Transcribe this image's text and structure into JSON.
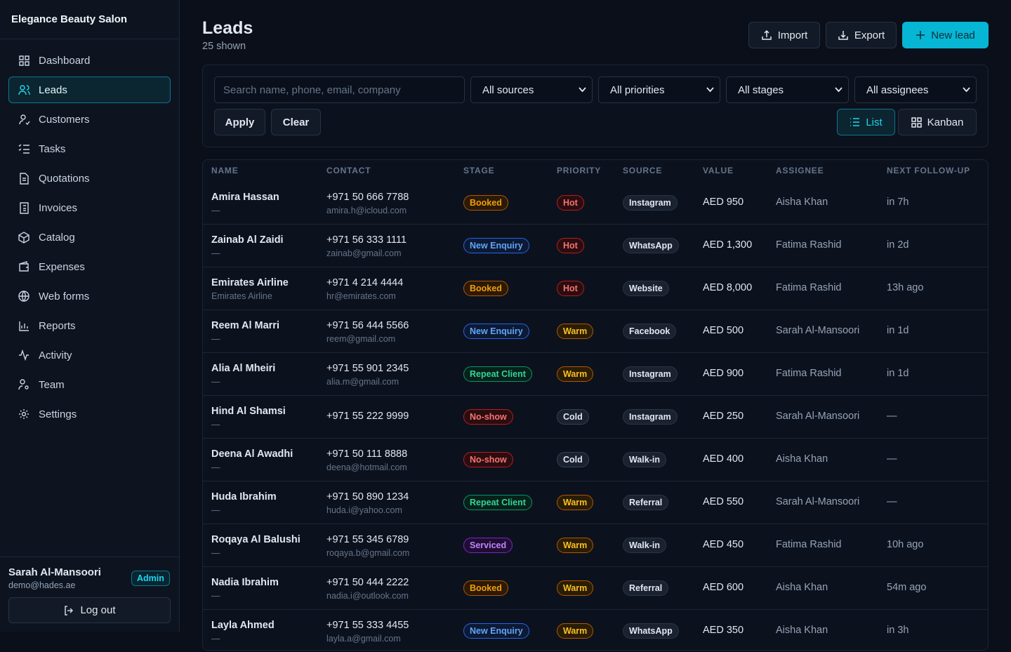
{
  "sidebar": {
    "brand": "Elegance Beauty Salon",
    "active": 1,
    "nav": [
      "Dashboard",
      "Leads",
      "Customers",
      "Tasks",
      "Quotations",
      "Invoices",
      "Catalog",
      "Expenses",
      "Web forms",
      "Reports",
      "Activity",
      "Team",
      "Settings"
    ],
    "user": {
      "name": "Sarah Al-Mansoori",
      "email": "demo@hades.ae",
      "role": "Admin"
    },
    "logout": "Log out"
  },
  "header": {
    "title": "Leads",
    "subtitle": "25 shown",
    "buttons": [
      "Import",
      "Export",
      "New lead"
    ]
  },
  "filters": {
    "search": "Search name, phone, email, company",
    "selects": [
      "All sources",
      "All priorities",
      "All stages",
      "All assignees"
    ],
    "actions": [
      "Apply",
      "Clear"
    ],
    "views": [
      "List",
      "Kanban"
    ]
  },
  "table": {
    "columns": [
      "NAME",
      "CONTACT",
      "STAGE",
      "PRIORITY",
      "SOURCE",
      "VALUE",
      "ASSIGNEE",
      "NEXT FOLLOW-UP"
    ],
    "rows": [
      {
        "name": "Amira Hassan",
        "sub": "—",
        "phone": "+971 50 666 7788",
        "email": "amira.h@icloud.com",
        "stage": "Booked",
        "priority": "Hot",
        "source": "Instagram",
        "value": "AED 950",
        "assignee": "Aisha Khan",
        "follow_up": "in 7h"
      },
      {
        "name": "Zainab Al Zaidi",
        "sub": "—",
        "phone": "+971 56 333 1111",
        "email": "zainab@gmail.com",
        "stage": "New Enquiry",
        "priority": "Hot",
        "source": "WhatsApp",
        "value": "AED 1,300",
        "assignee": "Fatima Rashid",
        "follow_up": "in 2d"
      },
      {
        "name": "Emirates Airline",
        "sub": "Emirates Airline",
        "phone": "+971 4 214 4444",
        "email": "hr@emirates.com",
        "stage": "Booked",
        "priority": "Hot",
        "source": "Website",
        "value": "AED 8,000",
        "assignee": "Fatima Rashid",
        "follow_up": "13h ago"
      },
      {
        "name": "Reem Al Marri",
        "sub": "—",
        "phone": "+971 56 444 5566",
        "email": "reem@gmail.com",
        "stage": "New Enquiry",
        "priority": "Warm",
        "source": "Facebook",
        "value": "AED 500",
        "assignee": "Sarah Al-Mansoori",
        "follow_up": "in 1d"
      },
      {
        "name": "Alia Al Mheiri",
        "sub": "—",
        "phone": "+971 55 901 2345",
        "email": "alia.m@gmail.com",
        "stage": "Repeat Client",
        "priority": "Warm",
        "source": "Instagram",
        "value": "AED 900",
        "assignee": "Fatima Rashid",
        "follow_up": "in 1d"
      },
      {
        "name": "Hind Al Shamsi",
        "sub": "—",
        "phone": "+971 55 222 9999",
        "stage": "No-show",
        "priority": "Cold",
        "source": "Instagram",
        "value": "AED 250",
        "assignee": "Sarah Al-Mansoori",
        "follow_up": "—"
      },
      {
        "name": "Deena Al Awadhi",
        "sub": "—",
        "phone": "+971 50 111 8888",
        "email": "deena@hotmail.com",
        "stage": "No-show",
        "priority": "Cold",
        "source": "Walk-in",
        "value": "AED 400",
        "assignee": "Aisha Khan",
        "follow_up": "—"
      },
      {
        "name": "Huda Ibrahim",
        "sub": "—",
        "phone": "+971 50 890 1234",
        "email": "huda.i@yahoo.com",
        "stage": "Repeat Client",
        "priority": "Warm",
        "source": "Referral",
        "value": "AED 550",
        "assignee": "Sarah Al-Mansoori",
        "follow_up": "—"
      },
      {
        "name": "Roqaya Al Balushi",
        "sub": "—",
        "phone": "+971 55 345 6789",
        "email": "roqaya.b@gmail.com",
        "stage": "Serviced",
        "priority": "Warm",
        "source": "Walk-in",
        "value": "AED 450",
        "assignee": "Fatima Rashid",
        "follow_up": "10h ago"
      },
      {
        "name": "Nadia Ibrahim",
        "sub": "—",
        "phone": "+971 50 444 2222",
        "email": "nadia.i@outlook.com",
        "stage": "Booked",
        "priority": "Warm",
        "source": "Referral",
        "value": "AED 600",
        "assignee": "Aisha Khan",
        "follow_up": "54m ago"
      },
      {
        "name": "Layla Ahmed",
        "sub": "—",
        "phone": "+971 55 333 4455",
        "email": "layla.a@gmail.com",
        "stage": "New Enquiry",
        "priority": "Warm",
        "source": "WhatsApp",
        "value": "AED 350",
        "assignee": "Aisha Khan",
        "follow_up": "in 3h"
      }
    ]
  }
}
